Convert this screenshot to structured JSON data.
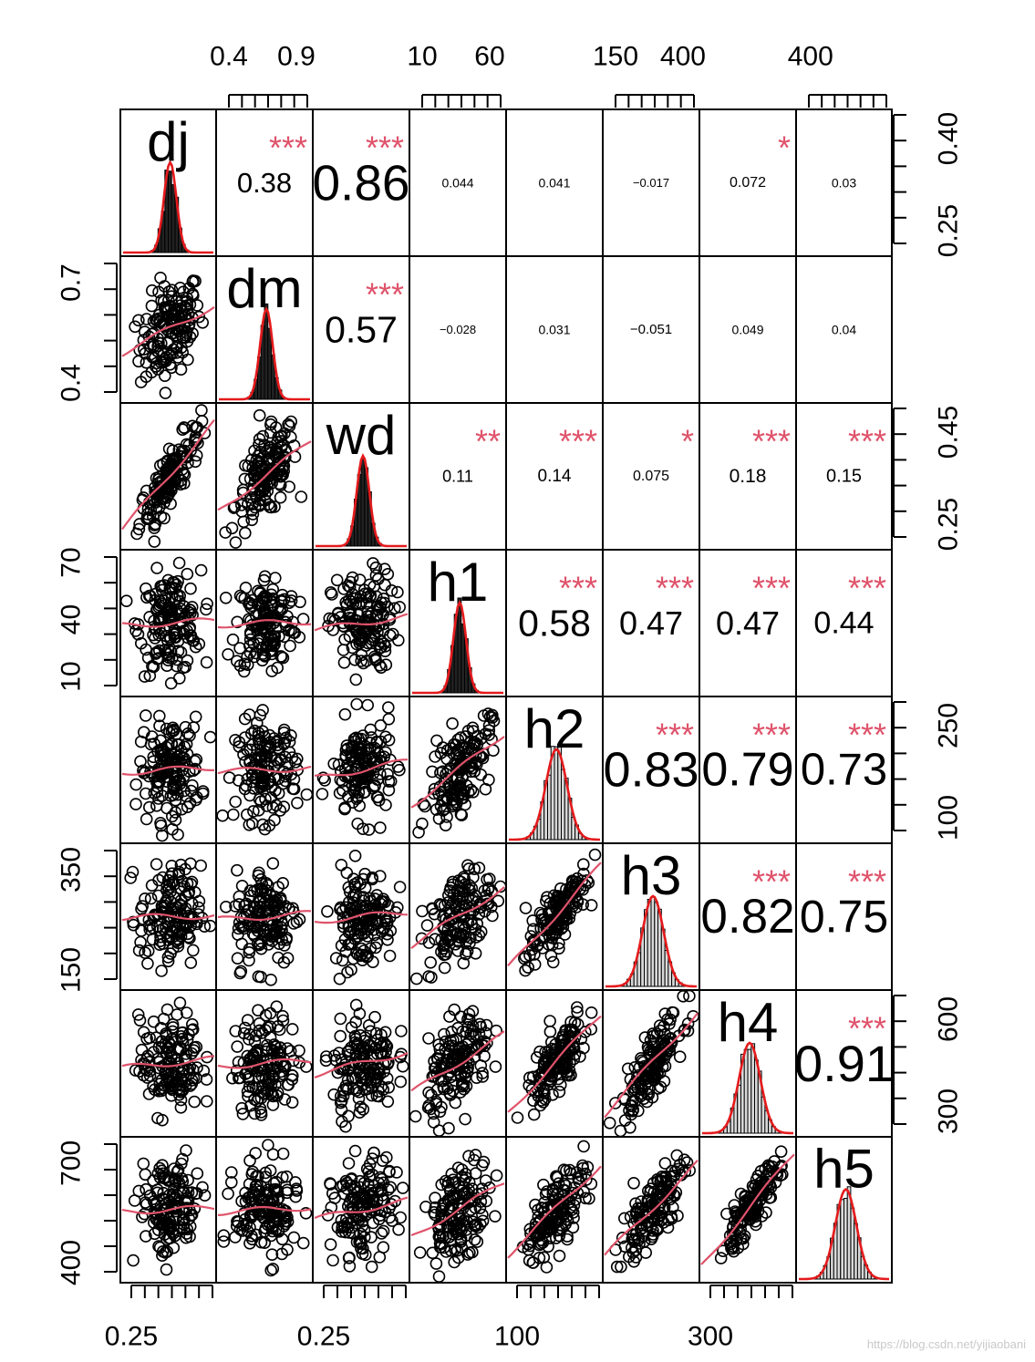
{
  "chart_data": {
    "type": "scatter-matrix",
    "variables": [
      "dj",
      "dm",
      "wd",
      "h1",
      "h2",
      "h3",
      "h4",
      "h5"
    ],
    "correlations": [
      {
        "row": 0,
        "col": 1,
        "r": "0.38",
        "stars": "***"
      },
      {
        "row": 0,
        "col": 2,
        "r": "0.86",
        "stars": "***"
      },
      {
        "row": 0,
        "col": 3,
        "r": "0.044",
        "stars": ""
      },
      {
        "row": 0,
        "col": 4,
        "r": "0.041",
        "stars": ""
      },
      {
        "row": 0,
        "col": 5,
        "r": "−0.017",
        "stars": ""
      },
      {
        "row": 0,
        "col": 6,
        "r": "0.072",
        "stars": "*"
      },
      {
        "row": 0,
        "col": 7,
        "r": "0.03",
        "stars": ""
      },
      {
        "row": 1,
        "col": 2,
        "r": "0.57",
        "stars": "***"
      },
      {
        "row": 1,
        "col": 3,
        "r": "−0.028",
        "stars": ""
      },
      {
        "row": 1,
        "col": 4,
        "r": "0.031",
        "stars": ""
      },
      {
        "row": 1,
        "col": 5,
        "r": "−0.051",
        "stars": ""
      },
      {
        "row": 1,
        "col": 6,
        "r": "0.049",
        "stars": ""
      },
      {
        "row": 1,
        "col": 7,
        "r": "0.04",
        "stars": ""
      },
      {
        "row": 2,
        "col": 3,
        "r": "0.11",
        "stars": "**"
      },
      {
        "row": 2,
        "col": 4,
        "r": "0.14",
        "stars": "***"
      },
      {
        "row": 2,
        "col": 5,
        "r": "0.075",
        "stars": "*"
      },
      {
        "row": 2,
        "col": 6,
        "r": "0.18",
        "stars": "***"
      },
      {
        "row": 2,
        "col": 7,
        "r": "0.15",
        "stars": "***"
      },
      {
        "row": 3,
        "col": 4,
        "r": "0.58",
        "stars": "***"
      },
      {
        "row": 3,
        "col": 5,
        "r": "0.47",
        "stars": "***"
      },
      {
        "row": 3,
        "col": 6,
        "r": "0.47",
        "stars": "***"
      },
      {
        "row": 3,
        "col": 7,
        "r": "0.44",
        "stars": "***"
      },
      {
        "row": 4,
        "col": 5,
        "r": "0.83",
        "stars": "***"
      },
      {
        "row": 4,
        "col": 6,
        "r": "0.79",
        "stars": "***"
      },
      {
        "row": 4,
        "col": 7,
        "r": "0.73",
        "stars": "***"
      },
      {
        "row": 5,
        "col": 6,
        "r": "0.82",
        "stars": "***"
      },
      {
        "row": 5,
        "col": 7,
        "r": "0.75",
        "stars": "***"
      },
      {
        "row": 6,
        "col": 7,
        "r": "0.91",
        "stars": "***"
      }
    ],
    "top_axis": [
      {
        "col": 1,
        "labels": [
          "0.4",
          "0.9"
        ]
      },
      {
        "col": 3,
        "labels": [
          "10",
          "60"
        ]
      },
      {
        "col": 5,
        "labels": [
          "150",
          "400"
        ]
      },
      {
        "col": 7,
        "labels": [
          "400"
        ]
      }
    ],
    "bottom_axis": [
      {
        "col": 0,
        "labels": [
          "0.25"
        ]
      },
      {
        "col": 2,
        "labels": [
          "0.25"
        ]
      },
      {
        "col": 4,
        "labels": [
          "100"
        ]
      },
      {
        "col": 6,
        "labels": [
          "300"
        ]
      }
    ],
    "left_axis": [
      {
        "row": 1,
        "labels": [
          "0.4",
          "0.7"
        ]
      },
      {
        "row": 3,
        "labels": [
          "10",
          "40",
          "70"
        ]
      },
      {
        "row": 5,
        "labels": [
          "150",
          "350"
        ]
      },
      {
        "row": 7,
        "labels": [
          "400",
          "700"
        ]
      }
    ],
    "right_axis": [
      {
        "row": 0,
        "labels": [
          "0.25",
          "0.40"
        ]
      },
      {
        "row": 2,
        "labels": [
          "0.25",
          "0.45"
        ]
      },
      {
        "row": 4,
        "labels": [
          "100",
          "250"
        ]
      },
      {
        "row": 6,
        "labels": [
          "300",
          "600"
        ]
      }
    ],
    "colors": {
      "stars": "#DF536B",
      "smooth": "#DF536B",
      "density": "#E41A1C",
      "points": "#000000",
      "grid": "#000000"
    }
  },
  "watermark": "https://blog.csdn.net/yijiaobani"
}
